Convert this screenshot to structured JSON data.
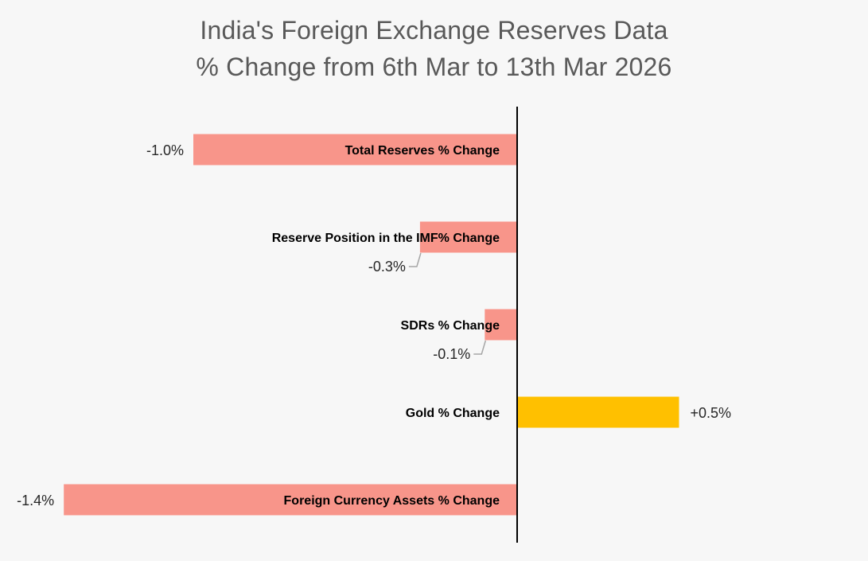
{
  "chart_data": {
    "type": "bar",
    "orientation": "horizontal",
    "title": "India's Foreign Exchange Reserves Data",
    "subtitle": "% Change from 6th Mar to 13th Mar 2026",
    "categories": [
      "Total Reserves % Change",
      "Reserve Position in the IMF% Change",
      "SDRs % Change",
      "Gold % Change",
      "Foreign Currency Assets % Change"
    ],
    "values": [
      -1.0,
      -0.3,
      -0.1,
      0.5,
      -1.4
    ],
    "data_labels": [
      "-1.0%",
      "-0.3%",
      "-0.1%",
      "+0.5%",
      "-1.4%"
    ],
    "colors": {
      "negative": "#f8958a",
      "positive": "#ffc000",
      "axis": "#000000",
      "leader": "#a6a6a6"
    },
    "xlim": [
      -1.6,
      0.8
    ],
    "grid": false,
    "legend": "none"
  }
}
